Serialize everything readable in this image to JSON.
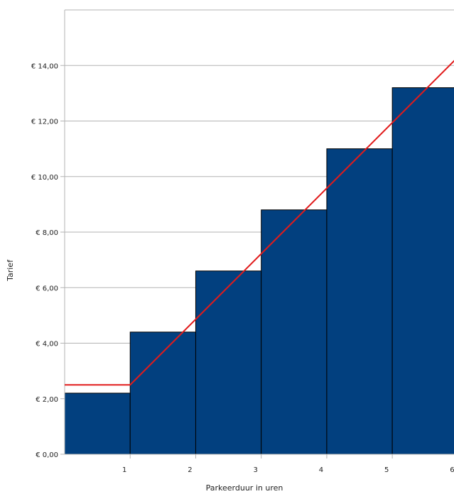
{
  "chart_data": {
    "type": "bar",
    "title": "",
    "xlabel": "Parkeerduur in uren",
    "ylabel": "Tarief",
    "ylim": [
      0,
      16
    ],
    "y_ticks": [
      0,
      2,
      4,
      6,
      8,
      10,
      12,
      14
    ],
    "y_tick_labels": [
      "€ 0,00",
      "€ 2,00",
      "€ 4,00",
      "€ 6,00",
      "€ 8,00",
      "€ 10,00",
      "€ 12,00",
      "€ 14,00"
    ],
    "xlim": [
      0,
      6
    ],
    "x_ticks": [
      1,
      2,
      3,
      4,
      5,
      6
    ],
    "x_tick_labels": [
      "1",
      "2",
      "3",
      "4",
      "5",
      "6"
    ],
    "grid": true,
    "bars": {
      "intervals": [
        [
          0,
          1
        ],
        [
          1,
          2
        ],
        [
          2,
          3
        ],
        [
          3,
          4
        ],
        [
          4,
          5
        ],
        [
          5,
          6
        ]
      ],
      "values": [
        2.2,
        4.4,
        6.6,
        8.8,
        11.0,
        13.2
      ],
      "color": "#02407f"
    },
    "line": {
      "x": [
        0,
        1,
        6
      ],
      "y": [
        2.5,
        2.5,
        14.3
      ],
      "color": "#e11b1b"
    }
  }
}
